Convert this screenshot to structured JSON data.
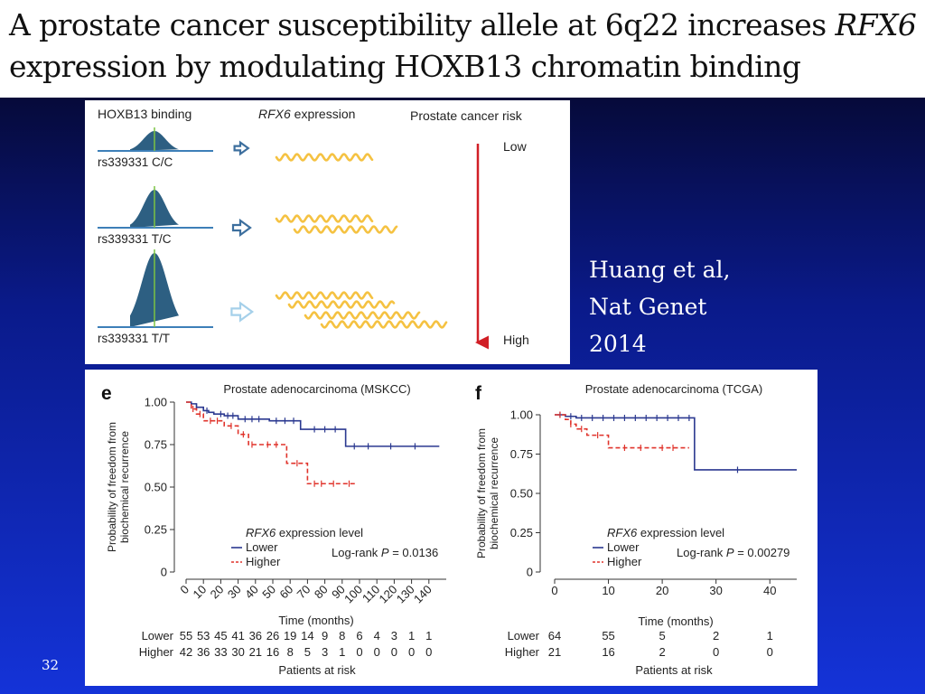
{
  "slide": {
    "title_line1_start": "A prostate cancer susceptibility allele at 6q22 increases ",
    "title_line1_gene": "RFX6",
    "title_line2": "expression by modulating HOXB13 chromatin binding",
    "citation": [
      "Huang et al,",
      "Nat Genet",
      "2014"
    ],
    "page_number": "32"
  },
  "diagram": {
    "col_binding": "HOXB13 binding",
    "col_expression_gene": "RFX6",
    "col_expression_rest": " expression",
    "col_risk": "Prostate cancer risk",
    "genotypes": [
      "rs339331 C/C",
      "rs339331 T/C",
      "rs339331 T/T"
    ],
    "risk_low": "Low",
    "risk_high": "High",
    "colors": {
      "peak": "#2d5f82",
      "baseline": "#3d7fb8",
      "center_line": "#7bc242",
      "wave": "#f5c242",
      "risk_arrow": "#d11f26",
      "arrow_dark": "#3d6f9e",
      "arrow_light": "#a5d0ea"
    }
  },
  "chart_data": [
    {
      "type": "line",
      "panel_letter": "e",
      "title": "Prostate adenocarcinoma (MSKCC)",
      "xlabel": "Time (months)",
      "ylabel": [
        "Probability of freedom from",
        "biochemical recurrence"
      ],
      "xlim": [
        0,
        150
      ],
      "ylim": [
        0,
        1.0
      ],
      "xticks": [
        0,
        10,
        20,
        30,
        40,
        50,
        60,
        70,
        80,
        90,
        100,
        110,
        120,
        130,
        140
      ],
      "yticks": [
        0,
        0.25,
        0.5,
        0.75,
        1.0
      ],
      "ytick_labels": [
        "0",
        "0.25",
        "0.50",
        "0.75",
        "1.00"
      ],
      "legend_title_gene": "RFX6",
      "legend_title_rest": " expression level",
      "logrank_prefix": "Log-rank ",
      "logrank_p": "P",
      "logrank_value": " = 0.0136",
      "series": [
        {
          "name": "Lower",
          "color": "#2b3990",
          "dash": "",
          "x": [
            0,
            3,
            6,
            10,
            13,
            16,
            22,
            30,
            48,
            66,
            92,
            146
          ],
          "y": [
            1.0,
            0.99,
            0.97,
            0.95,
            0.94,
            0.93,
            0.92,
            0.9,
            0.89,
            0.84,
            0.74,
            0.74
          ],
          "censor_x": [
            6,
            12,
            20,
            24,
            27,
            34,
            38,
            42,
            52,
            57,
            62,
            74,
            80,
            86,
            97,
            105,
            118,
            132
          ]
        },
        {
          "name": "Higher",
          "color": "#e0332b",
          "dash": "5,3",
          "x": [
            0,
            3,
            6,
            10,
            22,
            30,
            36,
            44,
            58,
            61,
            70,
            98
          ],
          "y": [
            1.0,
            0.96,
            0.93,
            0.89,
            0.86,
            0.81,
            0.75,
            0.75,
            0.64,
            0.64,
            0.52,
            0.52
          ],
          "censor_x": [
            4,
            8,
            14,
            18,
            26,
            33,
            38,
            47,
            52,
            64,
            74,
            78,
            85,
            94
          ]
        }
      ],
      "risk_table": {
        "title": "Patients at risk",
        "rows": [
          {
            "label": "Lower",
            "values": [
              55,
              53,
              45,
              41,
              36,
              26,
              19,
              14,
              9,
              8,
              6,
              4,
              3,
              1,
              1
            ]
          },
          {
            "label": "Higher",
            "values": [
              42,
              36,
              33,
              30,
              21,
              16,
              8,
              5,
              3,
              1,
              0,
              0,
              0,
              0,
              0
            ]
          }
        ]
      }
    },
    {
      "type": "line",
      "panel_letter": "f",
      "title": "Prostate adenocarcinoma (TCGA)",
      "xlabel": "Time (months)",
      "ylabel": [
        "Probability of freedom from",
        "biochemical recurrence"
      ],
      "xlim": [
        0,
        45
      ],
      "ylim": [
        0,
        1.0
      ],
      "xticks": [
        0,
        10,
        20,
        30,
        40
      ],
      "yticks": [
        0,
        0.25,
        0.5,
        0.75,
        1.0
      ],
      "ytick_labels": [
        "0",
        "0.25",
        "0.50",
        "0.75",
        "1.00"
      ],
      "legend_title_gene": "RFX6",
      "legend_title_rest": " expression level",
      "logrank_prefix": "Log-rank ",
      "logrank_p": "P",
      "logrank_value": " = 0.00279",
      "series": [
        {
          "name": "Lower",
          "color": "#2b3990",
          "dash": "",
          "x": [
            0,
            2,
            4,
            26,
            45
          ],
          "y": [
            1.0,
            0.99,
            0.98,
            0.65,
            0.65
          ],
          "censor_x": [
            1,
            3,
            5,
            7,
            9,
            11,
            13,
            15,
            17,
            19,
            21,
            23,
            25,
            34
          ]
        },
        {
          "name": "Higher",
          "color": "#e0332b",
          "dash": "5,3",
          "x": [
            0,
            2,
            3,
            4,
            6,
            10,
            25
          ],
          "y": [
            1.0,
            0.97,
            0.94,
            0.91,
            0.87,
            0.79,
            0.79
          ],
          "censor_x": [
            1,
            3,
            5,
            8,
            13,
            16,
            20,
            22
          ]
        }
      ],
      "risk_table": {
        "title": "Patients at risk",
        "rows": [
          {
            "label": "Lower",
            "values": [
              64,
              55,
              5,
              2,
              1
            ]
          },
          {
            "label": "Higher",
            "values": [
              21,
              16,
              2,
              0,
              0
            ]
          }
        ]
      }
    }
  ]
}
